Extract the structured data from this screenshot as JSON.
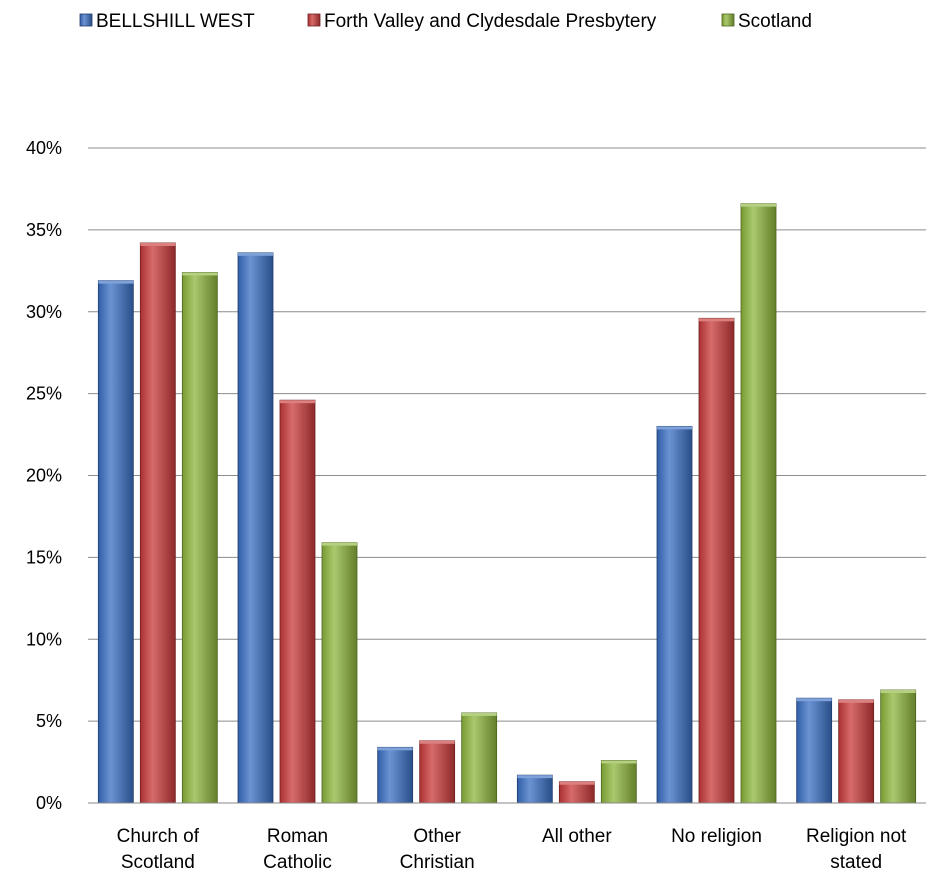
{
  "chart_data": {
    "type": "bar",
    "title": "",
    "xlabel": "",
    "ylabel": "",
    "ylim": [
      0,
      40
    ],
    "y_ticks": [
      "0%",
      "5%",
      "10%",
      "15%",
      "20%",
      "25%",
      "30%",
      "35%",
      "40%"
    ],
    "grid": true,
    "legend_position": "top",
    "categories": [
      [
        "Church of",
        "Scotland"
      ],
      [
        "Roman",
        "Catholic"
      ],
      [
        "Other",
        "Christian"
      ],
      [
        "All other"
      ],
      [
        "No religion"
      ],
      [
        "Religion not",
        "stated"
      ]
    ],
    "series": [
      {
        "name": "BELLSHILL WEST",
        "color": "#3a6fc4",
        "values": [
          31.9,
          33.6,
          3.4,
          1.7,
          23.0,
          6.4
        ]
      },
      {
        "name": "Forth Valley and Clydesdale Presbytery",
        "color": "#c93a3a",
        "values": [
          34.2,
          24.6,
          3.8,
          1.3,
          29.6,
          6.3
        ]
      },
      {
        "name": "Scotland",
        "color": "#8db63c",
        "values": [
          32.4,
          15.9,
          5.5,
          2.6,
          36.6,
          6.9
        ]
      }
    ]
  }
}
